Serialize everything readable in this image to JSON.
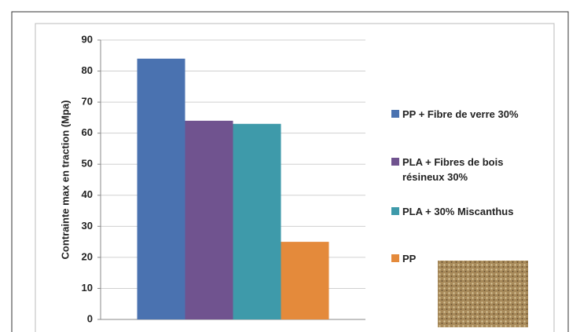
{
  "chart_data": {
    "type": "bar",
    "y_label": "Contrainte max en traction (Mpa)",
    "categories": [
      null
    ],
    "series": [
      {
        "name": "PP + Fibre de verre 30%",
        "color": "#4a72b0",
        "values": [
          84
        ]
      },
      {
        "name": "PLA + Fibres de bois résineux 30%",
        "color": "#70538f",
        "values": [
          64
        ]
      },
      {
        "name": "PLA + 30% Miscanthus",
        "color": "#3e9aaa",
        "values": [
          63
        ]
      },
      {
        "name": "PP",
        "color": "#e48a3b",
        "values": [
          25
        ]
      }
    ],
    "ylim": [
      0,
      90
    ],
    "yticks": [
      0,
      10,
      20,
      30,
      40,
      50,
      60,
      70,
      80,
      90
    ],
    "grid": true
  }
}
